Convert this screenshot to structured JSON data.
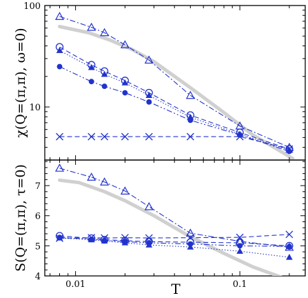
{
  "chart_data": [
    {
      "type": "line",
      "panel": "top",
      "ylabel": "χ(Q=(π,π), ω=0)",
      "yscale": "log",
      "xscale": "log",
      "xlim": [
        0.0065,
        0.25
      ],
      "ylim": [
        3.0,
        100
      ],
      "yticks": [
        {
          "value": 10,
          "label": "10"
        },
        {
          "value": 100,
          "label": "100"
        }
      ],
      "xticks": [],
      "grid": false,
      "legend": "none",
      "series": [
        {
          "style": "gray-solid",
          "color": "#d0d0d0",
          "x": [
            0.008,
            0.012,
            0.016,
            0.022,
            0.03,
            0.05,
            0.08,
            0.12,
            0.17,
            0.21
          ],
          "y": [
            62,
            54,
            46,
            37,
            28,
            15.5,
            8.8,
            5.3,
            3.8,
            3.1
          ]
        },
        {
          "marker": "open-triangle",
          "linestyle": "dash-dot",
          "color": "#2233cc",
          "x": [
            0.008,
            0.0125,
            0.015,
            0.02,
            0.028,
            0.05,
            0.1,
            0.2
          ],
          "y": [
            78,
            61,
            54,
            41,
            29,
            13,
            6.5,
            4.0
          ]
        },
        {
          "marker": "open-circle",
          "linestyle": "dashed",
          "color": "#2233cc",
          "x": [
            0.008,
            0.0125,
            0.015,
            0.02,
            0.028,
            0.05,
            0.1,
            0.2
          ],
          "y": [
            39,
            26,
            22.5,
            18.2,
            13.8,
            8.3,
            5.6,
            3.85
          ]
        },
        {
          "marker": "filled-triangle",
          "linestyle": "dotted",
          "color": "#2233cc",
          "x": [
            0.008,
            0.0125,
            0.015,
            0.02,
            0.028,
            0.05,
            0.1,
            0.2
          ],
          "y": [
            36,
            24.5,
            21,
            17.3,
            13.0,
            7.9,
            5.4,
            3.75
          ]
        },
        {
          "marker": "filled-circle",
          "linestyle": "dash-dot-dot",
          "color": "#2233cc",
          "x": [
            0.008,
            0.0125,
            0.015,
            0.02,
            0.028,
            0.05,
            0.1,
            0.2
          ],
          "y": [
            25,
            17.8,
            16.0,
            13.8,
            11.2,
            7.4,
            5.3,
            3.65
          ]
        },
        {
          "marker": "cross",
          "linestyle": "dashed",
          "color": "#2233cc",
          "x": [
            0.008,
            0.0125,
            0.015,
            0.02,
            0.028,
            0.05,
            0.1,
            0.2
          ],
          "y": [
            5.1,
            5.1,
            5.1,
            5.1,
            5.1,
            5.1,
            5.1,
            3.85
          ]
        }
      ]
    },
    {
      "type": "line",
      "panel": "bottom",
      "ylabel": "S(Q=(π,π), τ=0)",
      "xlabel": "T",
      "xscale": "log",
      "xlim": [
        0.0065,
        0.25
      ],
      "ylim": [
        4,
        7.85
      ],
      "yticks": [
        {
          "value": 4,
          "label": "4"
        },
        {
          "value": 5,
          "label": "5"
        },
        {
          "value": 6,
          "label": "6"
        },
        {
          "value": 7,
          "label": "7"
        }
      ],
      "xticks": [
        {
          "value": 0.01,
          "label": "0.01"
        },
        {
          "value": 0.1,
          "label": "0.1"
        }
      ],
      "grid": false,
      "legend": "none",
      "series": [
        {
          "style": "gray-solid",
          "color": "#d0d0d0",
          "x": [
            0.008,
            0.0105,
            0.015,
            0.02,
            0.03,
            0.05,
            0.08,
            0.12,
            0.17,
            0.2
          ],
          "y": [
            7.18,
            7.1,
            6.8,
            6.5,
            6.0,
            5.3,
            4.75,
            4.3,
            4.0,
            3.85
          ]
        },
        {
          "marker": "open-triangle",
          "linestyle": "dash-dot",
          "color": "#2233cc",
          "x": [
            0.008,
            0.0125,
            0.015,
            0.02,
            0.028,
            0.05,
            0.1,
            0.2
          ],
          "y": [
            7.58,
            7.28,
            7.12,
            6.82,
            6.3,
            5.42,
            5.15,
            4.95
          ]
        },
        {
          "marker": "open-circle",
          "linestyle": "dashed",
          "color": "#2233cc",
          "x": [
            0.008,
            0.0125,
            0.015,
            0.02,
            0.028,
            0.05,
            0.1,
            0.2
          ],
          "y": [
            5.33,
            5.25,
            5.2,
            5.17,
            5.14,
            5.12,
            5.1,
            5.0
          ]
        },
        {
          "marker": "filled-circle",
          "linestyle": "dash-dot-dot",
          "color": "#2233cc",
          "x": [
            0.008,
            0.0125,
            0.015,
            0.02,
            0.028,
            0.05,
            0.1,
            0.2
          ],
          "y": [
            5.28,
            5.22,
            5.18,
            5.14,
            5.1,
            5.06,
            5.0,
            4.98
          ]
        },
        {
          "marker": "filled-triangle",
          "linestyle": "dotted",
          "color": "#2233cc",
          "x": [
            0.008,
            0.0125,
            0.015,
            0.02,
            0.028,
            0.05,
            0.1,
            0.2
          ],
          "y": [
            5.26,
            5.2,
            5.16,
            5.1,
            5.03,
            4.96,
            4.82,
            4.62
          ]
        },
        {
          "marker": "cross",
          "linestyle": "dashed",
          "color": "#2233cc",
          "x": [
            0.008,
            0.0125,
            0.015,
            0.02,
            0.028,
            0.05,
            0.1,
            0.2
          ],
          "y": [
            5.25,
            5.27,
            5.26,
            5.27,
            5.26,
            5.27,
            5.28,
            5.38
          ]
        }
      ]
    }
  ]
}
